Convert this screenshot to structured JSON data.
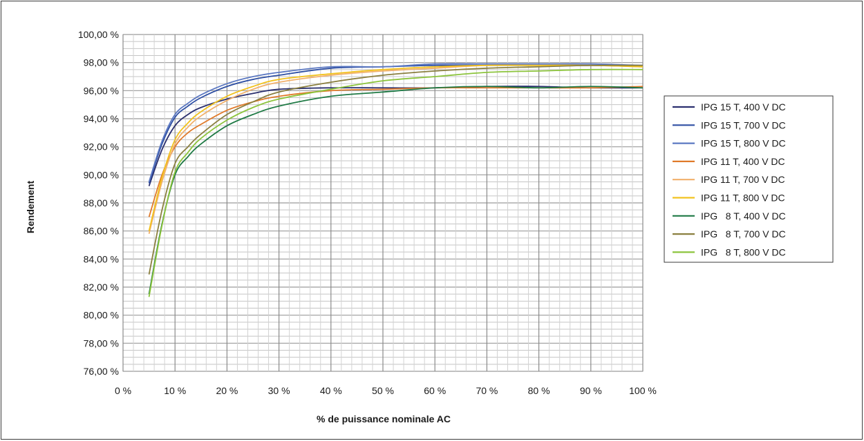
{
  "chart_data": {
    "type": "line",
    "xlabel": "% de puissance nominale AC",
    "ylabel": "Rendement",
    "xlim": [
      0,
      100
    ],
    "ylim": [
      76,
      100
    ],
    "x_ticks": [
      "0 %",
      "10 %",
      "20 %",
      "30 %",
      "40 %",
      "50 %",
      "60 %",
      "70 %",
      "80 %",
      "90 %",
      "100 %"
    ],
    "y_ticks": [
      "76,00 %",
      "78,00 %",
      "80,00 %",
      "82,00 %",
      "84,00 %",
      "86,00 %",
      "88,00 %",
      "90,00 %",
      "92,00 %",
      "94,00 %",
      "96,00 %",
      "98,00 %",
      "100,00 %"
    ],
    "grid": true,
    "legend_position": "right",
    "x": [
      5,
      7.5,
      10,
      12.5,
      15,
      20,
      25,
      30,
      40,
      50,
      60,
      70,
      80,
      90,
      100
    ],
    "series": [
      {
        "name": "IPG 15 T, 400 V DC",
        "color": "#2a2f6e",
        "values": [
          89.2,
          91.8,
          93.5,
          94.3,
          94.8,
          95.4,
          95.8,
          96.1,
          96.2,
          96.2,
          96.2,
          96.3,
          96.3,
          96.2,
          96.2
        ]
      },
      {
        "name": "IPG 15 T, 700 V DC",
        "color": "#2e4fa3",
        "values": [
          89.4,
          92.2,
          94.1,
          94.9,
          95.5,
          96.3,
          96.8,
          97.1,
          97.6,
          97.7,
          97.8,
          97.8,
          97.8,
          97.8,
          97.8
        ]
      },
      {
        "name": "IPG 15 T, 800 V DC",
        "color": "#5b78c2",
        "values": [
          89.5,
          92.4,
          94.3,
          95.1,
          95.7,
          96.5,
          97.0,
          97.3,
          97.7,
          97.7,
          97.9,
          97.9,
          97.9,
          97.9,
          97.8
        ]
      },
      {
        "name": "IPG 11 T, 400 V DC",
        "color": "#e07a2a",
        "values": [
          87.0,
          90.0,
          92.0,
          93.0,
          93.6,
          94.6,
          95.2,
          95.6,
          96.0,
          96.1,
          96.2,
          96.2,
          96.2,
          96.2,
          96.3
        ]
      },
      {
        "name": "IPG 11 T, 700 V DC",
        "color": "#f1b06b",
        "values": [
          85.8,
          89.5,
          92.2,
          93.4,
          94.2,
          95.3,
          96.1,
          96.6,
          97.1,
          97.4,
          97.6,
          97.8,
          97.8,
          97.8,
          97.7
        ]
      },
      {
        "name": "IPG 11 T, 800 V DC",
        "color": "#f2c21d",
        "values": [
          86.0,
          89.8,
          92.5,
          93.7,
          94.5,
          95.6,
          96.3,
          96.8,
          97.2,
          97.5,
          97.7,
          97.8,
          97.8,
          97.8,
          97.7
        ]
      },
      {
        "name": "IPG   8 T, 400 V DC",
        "color": "#1f7a45",
        "values": [
          81.5,
          86.5,
          90.0,
          91.3,
          92.2,
          93.5,
          94.3,
          94.9,
          95.6,
          95.9,
          96.2,
          96.3,
          96.2,
          96.3,
          96.2
        ]
      },
      {
        "name": "IPG   8 T, 700 V DC",
        "color": "#8a7f3f",
        "values": [
          82.9,
          87.5,
          90.8,
          92.0,
          92.9,
          94.3,
          95.2,
          95.9,
          96.6,
          97.1,
          97.4,
          97.6,
          97.7,
          97.8,
          97.8
        ]
      },
      {
        "name": "IPG   8 T, 800 V DC",
        "color": "#8cc43c",
        "values": [
          81.3,
          86.4,
          90.2,
          91.6,
          92.6,
          93.9,
          94.8,
          95.4,
          96.1,
          96.7,
          97.0,
          97.3,
          97.4,
          97.5,
          97.5
        ]
      }
    ]
  }
}
